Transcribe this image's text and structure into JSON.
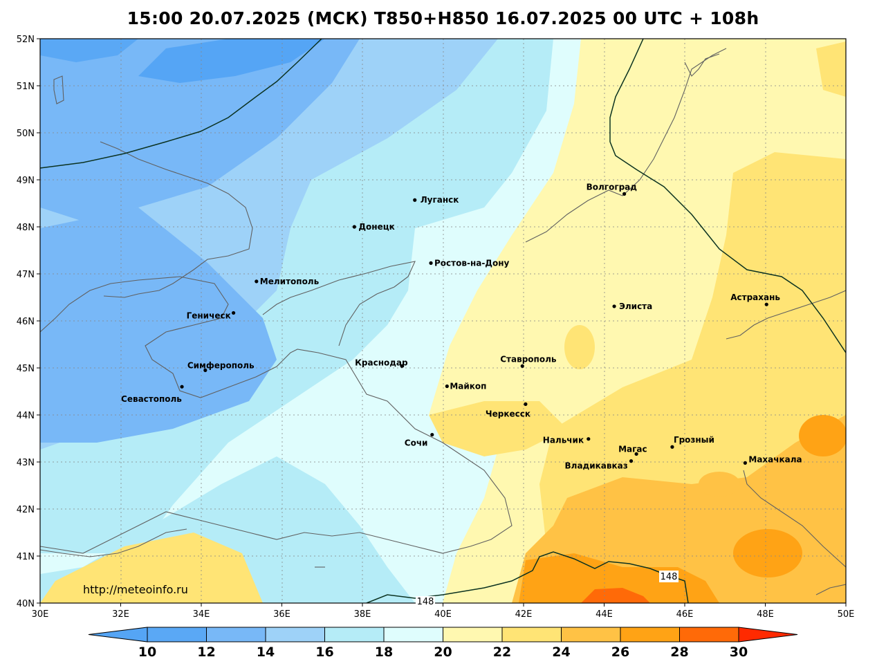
{
  "title": "15:00 20.07.2025 (МСК) T850+H850 16.07.2025 00 UTC + 108h",
  "watermark": "http://meteoinfo.ru",
  "lat_labels": [
    "52N",
    "51N",
    "50N",
    "49N",
    "48N",
    "47N",
    "46N",
    "45N",
    "44N",
    "43N",
    "42N",
    "41N",
    "40N"
  ],
  "lon_labels": [
    "30E",
    "32E",
    "34E",
    "36E",
    "38E",
    "40E",
    "42E",
    "44E",
    "46E",
    "48E",
    "50E"
  ],
  "colorbar": {
    "labels": [
      "10",
      "12",
      "14",
      "16",
      "18",
      "20",
      "22",
      "24",
      "26",
      "28",
      "30"
    ],
    "colors": [
      "#55a5f5",
      "#5aa8f5",
      "#78b8f7",
      "#9ed2f8",
      "#b5ecf7",
      "#dffdfd",
      "#fff8b0",
      "#ffe475",
      "#ffc245",
      "#ffa315",
      "#ff6a08",
      "#ff2a00"
    ]
  },
  "height_labels": [
    "148",
    "148"
  ],
  "cities": [
    {
      "name": "Волгоград",
      "lon": 44.5,
      "lat": 48.7
    },
    {
      "name": "Луганск",
      "lon": 39.3,
      "lat": 48.57
    },
    {
      "name": "Донецк",
      "lon": 37.8,
      "lat": 48.0
    },
    {
      "name": "Ростов-на-Дону",
      "lon": 39.7,
      "lat": 47.23
    },
    {
      "name": "Мелитополь",
      "lon": 35.37,
      "lat": 46.84
    },
    {
      "name": "Геническ",
      "lon": 34.8,
      "lat": 46.17
    },
    {
      "name": "Элиста",
      "lon": 44.25,
      "lat": 46.31
    },
    {
      "name": "Астрахань",
      "lon": 48.03,
      "lat": 46.35
    },
    {
      "name": "Краснодар",
      "lon": 38.98,
      "lat": 45.04
    },
    {
      "name": "Ставрополь",
      "lon": 41.97,
      "lat": 45.04
    },
    {
      "name": "Симферополь",
      "lon": 34.1,
      "lat": 44.95
    },
    {
      "name": "Севастополь",
      "lon": 33.52,
      "lat": 44.6
    },
    {
      "name": "Майкоп",
      "lon": 40.1,
      "lat": 44.61
    },
    {
      "name": "Черкесск",
      "lon": 42.05,
      "lat": 44.23
    },
    {
      "name": "Сочи",
      "lon": 39.73,
      "lat": 43.58
    },
    {
      "name": "Нальчик",
      "lon": 43.61,
      "lat": 43.49
    },
    {
      "name": "Грозный",
      "lon": 45.69,
      "lat": 43.32
    },
    {
      "name": "Магас",
      "lon": 44.8,
      "lat": 43.17
    },
    {
      "name": "Владикавказ",
      "lon": 44.67,
      "lat": 43.02
    },
    {
      "name": "Махачкала",
      "lon": 47.5,
      "lat": 42.98
    }
  ]
}
